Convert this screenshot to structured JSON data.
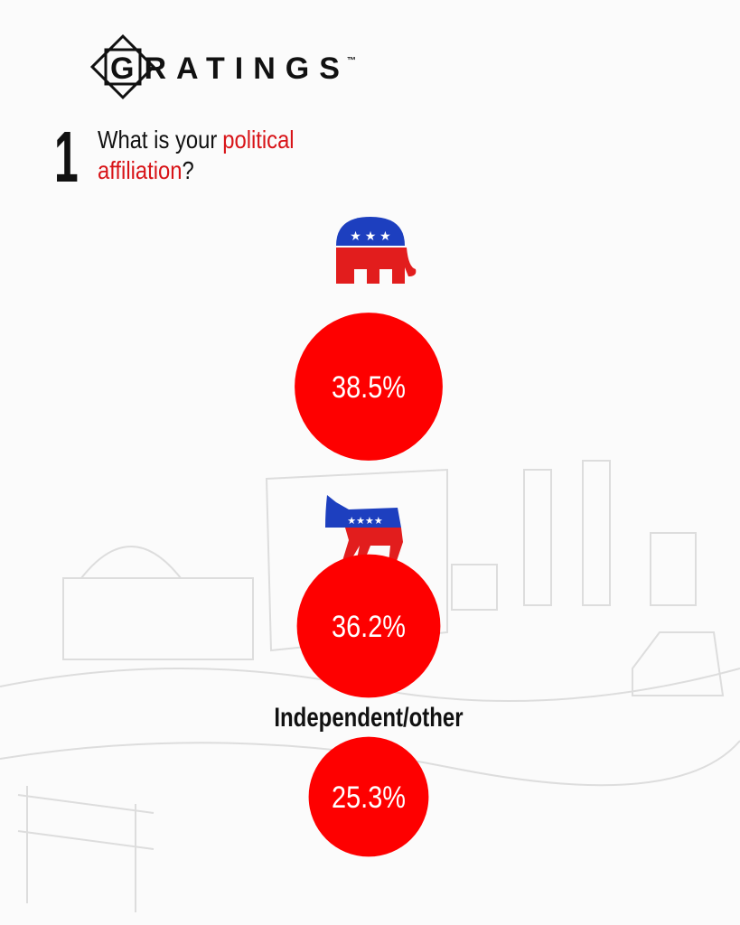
{
  "brand": "GRATINGS",
  "trademark": "™",
  "chart_data": {
    "type": "bubble",
    "number": "1",
    "title_parts": [
      "What is your",
      "political",
      "affiliation",
      "?"
    ],
    "categories": [
      null,
      null,
      "Independent/other"
    ],
    "values": [
      38.5,
      36.2,
      25.3
    ],
    "value_labels": [
      "38.5%",
      "36.2%",
      "25.3%"
    ],
    "color": "#fe0000"
  }
}
